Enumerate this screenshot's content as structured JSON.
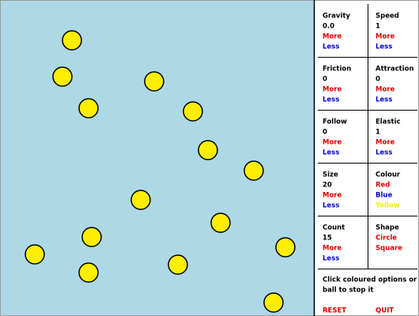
{
  "panel": {
    "cells": [
      {
        "title": "Gravity",
        "value": "0.0",
        "options": [
          "More",
          "Less"
        ]
      },
      {
        "title": "Speed",
        "value": "1",
        "options": [
          "More",
          "Less"
        ]
      },
      {
        "title": "Friction",
        "value": "0",
        "options": [
          "More",
          "Less"
        ]
      },
      {
        "title": "Attraction",
        "value": "0",
        "options": [
          "More",
          "Less"
        ]
      },
      {
        "title": "Follow",
        "value": "0",
        "options": [
          "More",
          "Less"
        ]
      },
      {
        "title": "Elastic",
        "value": "1",
        "options": [
          "More",
          "Less"
        ]
      },
      {
        "title": "Size",
        "value": "20",
        "options": [
          "More",
          "Less"
        ]
      },
      {
        "title": "Colour",
        "options": [
          "Red",
          "Blue",
          "Yellow"
        ]
      },
      {
        "title": "Count",
        "value": "15",
        "options": [
          "More",
          "Less"
        ]
      },
      {
        "title": "Shape",
        "options": [
          "Circle",
          "Square"
        ]
      }
    ],
    "hint_lines": [
      "Click coloured options or a",
      "ball to stop it"
    ],
    "buttons": [
      "RESET",
      "QUIT"
    ]
  }
}
